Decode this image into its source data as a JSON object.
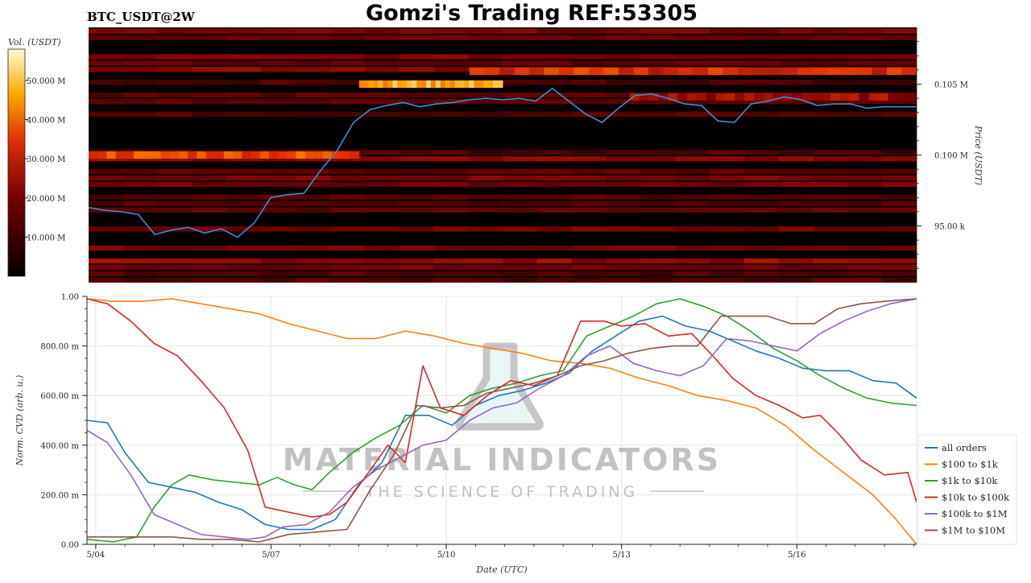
{
  "header": {
    "symbol": "BTC_USDT@2W",
    "title": "Gomzi's Trading REF:53305"
  },
  "watermark": {
    "line1": "MATERIAL INDICATORS",
    "line2": "THE SCIENCE OF TRADING"
  },
  "colors": {
    "heat_low": "#000000",
    "heat_mid": "#8b0000",
    "heat_high": "#ff6a00",
    "heat_max": "#ffffe0",
    "price_line": "#3a8fd0"
  },
  "chart_data": [
    {
      "type": "heatmap",
      "title": "BTC_USDT@2W",
      "colorbar_label": "Vol. (USDT)",
      "colorbar_ticks": [
        "10.000 M",
        "20.000 M",
        "30.000 M",
        "40.000 M",
        "50.000 M"
      ],
      "colorbar_values": [
        10,
        20,
        30,
        40,
        50
      ],
      "colorbar_range": [
        0,
        58
      ],
      "ylabel": "Price (USDT)",
      "y_ticks": [
        "95.00 k",
        "0.100 M",
        "0.105 M"
      ],
      "y_tick_values": [
        95000,
        100000,
        105000
      ],
      "ylim": [
        91000,
        109000
      ],
      "x_range_days": [
        3.7,
        18.7
      ],
      "price_series": {
        "name": "price",
        "x": [
          3.7,
          4.0,
          4.3,
          4.6,
          4.9,
          5.2,
          5.5,
          5.8,
          6.1,
          6.4,
          6.7,
          7.0,
          7.3,
          7.6,
          7.9,
          8.2,
          8.5,
          8.8,
          9.1,
          9.4,
          9.7,
          10.0,
          10.3,
          10.6,
          10.9,
          11.2,
          11.5,
          11.8,
          12.1,
          12.4,
          12.7,
          13.0,
          13.3,
          13.6,
          13.9,
          14.2,
          14.5,
          14.8,
          15.1,
          15.4,
          15.7,
          16.0,
          16.3,
          16.6,
          16.9,
          17.2,
          17.5,
          17.8,
          18.1,
          18.4,
          18.7
        ],
        "y": [
          96300,
          96100,
          96000,
          95800,
          94400,
          94700,
          94900,
          94500,
          94800,
          94200,
          95200,
          97000,
          97200,
          97300,
          98900,
          100300,
          102300,
          103200,
          103500,
          103700,
          103400,
          103600,
          103700,
          103900,
          104000,
          103900,
          104000,
          103800,
          104700,
          103800,
          102900,
          102300,
          103300,
          104200,
          104300,
          104000,
          103600,
          103500,
          102400,
          102300,
          103600,
          103800,
          104100,
          103900,
          103500,
          103600,
          103600,
          103300,
          103400,
          103400,
          103400
        ]
      },
      "hot_levels": [
        {
          "price": 100000,
          "x0": 3.7,
          "x1": 8.6,
          "intensity": 0.62
        },
        {
          "price": 105000,
          "x0": 8.6,
          "x1": 11.2,
          "intensity": 0.8
        },
        {
          "price": 105900,
          "x0": 10.6,
          "x1": 18.7,
          "intensity": 0.55
        },
        {
          "price": 104100,
          "x0": 13.5,
          "x1": 18.7,
          "intensity": 0.4
        }
      ]
    },
    {
      "type": "line",
      "xlabel": "Date (UTC)",
      "ylabel": "Norm. CVD (arb. u.)",
      "x_ticks": [
        "5/04",
        "5/07",
        "5/10",
        "5/13",
        "5/16"
      ],
      "x_tick_values": [
        4,
        7,
        10,
        13,
        16
      ],
      "xlim": [
        3.85,
        18.05
      ],
      "y_ticks": [
        "0.00",
        "200.00 m",
        "400.00 m",
        "600.00 m",
        "800.00 m",
        "1.00"
      ],
      "y_tick_values": [
        0,
        0.2,
        0.4,
        0.6,
        0.8,
        1.0
      ],
      "ylim": [
        0,
        1.0
      ],
      "legend_position": "right",
      "series": [
        {
          "name": "all orders",
          "color": "#1f77b4",
          "x": [
            3.85,
            4.2,
            4.5,
            4.9,
            5.3,
            5.7,
            6.1,
            6.5,
            6.9,
            7.3,
            7.7,
            8.1,
            8.5,
            8.9,
            9.3,
            9.7,
            10.1,
            10.5,
            10.9,
            11.3,
            11.7,
            12.1,
            12.5,
            12.9,
            13.3,
            13.7,
            14.1,
            14.5,
            14.9,
            15.3,
            15.7,
            16.1,
            16.5,
            16.9,
            17.3,
            17.7,
            18.05
          ],
          "y": [
            0.5,
            0.49,
            0.37,
            0.25,
            0.23,
            0.21,
            0.17,
            0.14,
            0.08,
            0.06,
            0.06,
            0.1,
            0.24,
            0.33,
            0.52,
            0.52,
            0.48,
            0.56,
            0.6,
            0.62,
            0.65,
            0.69,
            0.78,
            0.84,
            0.9,
            0.92,
            0.88,
            0.86,
            0.82,
            0.78,
            0.75,
            0.71,
            0.7,
            0.7,
            0.66,
            0.65,
            0.59
          ]
        },
        {
          "name": "$100 to $1k",
          "color": "#ff7f0e",
          "x": [
            3.85,
            4.3,
            4.8,
            5.3,
            5.8,
            6.3,
            6.8,
            7.3,
            7.8,
            8.3,
            8.8,
            9.3,
            9.8,
            10.3,
            10.8,
            11.3,
            11.8,
            12.3,
            12.8,
            13.3,
            13.8,
            14.3,
            14.8,
            15.3,
            15.8,
            16.3,
            16.8,
            17.3,
            17.7,
            18.05
          ],
          "y": [
            0.99,
            0.98,
            0.98,
            0.99,
            0.97,
            0.95,
            0.93,
            0.89,
            0.86,
            0.83,
            0.83,
            0.86,
            0.84,
            0.81,
            0.79,
            0.77,
            0.74,
            0.73,
            0.71,
            0.67,
            0.64,
            0.6,
            0.58,
            0.55,
            0.48,
            0.38,
            0.29,
            0.2,
            0.1,
            0.0
          ]
        },
        {
          "name": "$1k to $10k",
          "color": "#2ca02c",
          "x": [
            3.85,
            4.3,
            4.7,
            5.0,
            5.3,
            5.6,
            6.0,
            6.4,
            6.8,
            7.1,
            7.4,
            7.7,
            8.0,
            8.4,
            8.8,
            9.2,
            9.6,
            10.0,
            10.4,
            10.8,
            11.2,
            11.6,
            12.0,
            12.4,
            12.8,
            13.2,
            13.6,
            14.0,
            14.4,
            14.8,
            15.2,
            15.6,
            16.0,
            16.4,
            16.8,
            17.2,
            17.6,
            18.05
          ],
          "y": [
            0.02,
            0.01,
            0.03,
            0.15,
            0.24,
            0.28,
            0.26,
            0.25,
            0.24,
            0.27,
            0.24,
            0.22,
            0.29,
            0.37,
            0.43,
            0.48,
            0.56,
            0.53,
            0.6,
            0.63,
            0.65,
            0.68,
            0.7,
            0.84,
            0.88,
            0.92,
            0.97,
            0.99,
            0.96,
            0.92,
            0.86,
            0.79,
            0.74,
            0.68,
            0.63,
            0.59,
            0.57,
            0.56
          ]
        },
        {
          "name": "$10k to $100k",
          "color": "#d62728",
          "x": [
            3.85,
            4.2,
            4.6,
            5.0,
            5.4,
            5.8,
            6.2,
            6.6,
            6.9,
            7.3,
            7.7,
            8.0,
            8.3,
            8.7,
            9.0,
            9.3,
            9.6,
            9.9,
            10.3,
            10.7,
            11.1,
            11.5,
            11.9,
            12.3,
            12.7,
            13.0,
            13.4,
            13.8,
            14.2,
            14.6,
            14.9,
            15.3,
            15.7,
            16.1,
            16.4,
            16.7,
            17.1,
            17.5,
            17.9,
            18.05
          ],
          "y": [
            0.99,
            0.97,
            0.9,
            0.81,
            0.76,
            0.66,
            0.55,
            0.38,
            0.15,
            0.13,
            0.11,
            0.12,
            0.17,
            0.3,
            0.4,
            0.33,
            0.72,
            0.55,
            0.52,
            0.6,
            0.66,
            0.64,
            0.68,
            0.9,
            0.9,
            0.88,
            0.89,
            0.84,
            0.85,
            0.75,
            0.67,
            0.6,
            0.56,
            0.51,
            0.52,
            0.45,
            0.34,
            0.28,
            0.29,
            0.17
          ]
        },
        {
          "name": "$100k to $1M",
          "color": "#9467bd",
          "x": [
            3.85,
            4.2,
            4.6,
            5.0,
            5.4,
            5.8,
            6.2,
            6.6,
            6.9,
            7.2,
            7.6,
            8.0,
            8.4,
            8.8,
            9.2,
            9.6,
            10.0,
            10.4,
            10.8,
            11.2,
            11.6,
            12.0,
            12.4,
            12.8,
            13.2,
            13.6,
            14.0,
            14.4,
            14.8,
            15.2,
            15.6,
            16.0,
            16.4,
            16.8,
            17.2,
            17.6,
            18.05
          ],
          "y": [
            0.46,
            0.41,
            0.28,
            0.12,
            0.08,
            0.04,
            0.03,
            0.02,
            0.03,
            0.07,
            0.08,
            0.13,
            0.23,
            0.3,
            0.35,
            0.4,
            0.42,
            0.5,
            0.55,
            0.57,
            0.63,
            0.68,
            0.76,
            0.8,
            0.73,
            0.7,
            0.68,
            0.72,
            0.83,
            0.82,
            0.8,
            0.78,
            0.85,
            0.9,
            0.94,
            0.97,
            0.99
          ]
        },
        {
          "name": "$1M to $10M",
          "color": "#8c564b",
          "x": [
            3.85,
            4.3,
            4.8,
            5.3,
            5.8,
            6.3,
            6.8,
            7.3,
            7.8,
            8.3,
            8.7,
            9.1,
            9.5,
            9.9,
            10.3,
            10.7,
            11.1,
            11.5,
            11.9,
            12.3,
            12.7,
            13.1,
            13.5,
            13.9,
            14.3,
            14.7,
            15.1,
            15.5,
            15.9,
            16.3,
            16.7,
            17.1,
            17.5,
            18.05
          ],
          "y": [
            0.03,
            0.03,
            0.03,
            0.03,
            0.02,
            0.02,
            0.01,
            0.04,
            0.05,
            0.06,
            0.22,
            0.36,
            0.56,
            0.55,
            0.56,
            0.61,
            0.63,
            0.65,
            0.68,
            0.72,
            0.74,
            0.77,
            0.79,
            0.8,
            0.8,
            0.92,
            0.92,
            0.92,
            0.89,
            0.89,
            0.95,
            0.97,
            0.98,
            0.99
          ]
        }
      ]
    }
  ]
}
